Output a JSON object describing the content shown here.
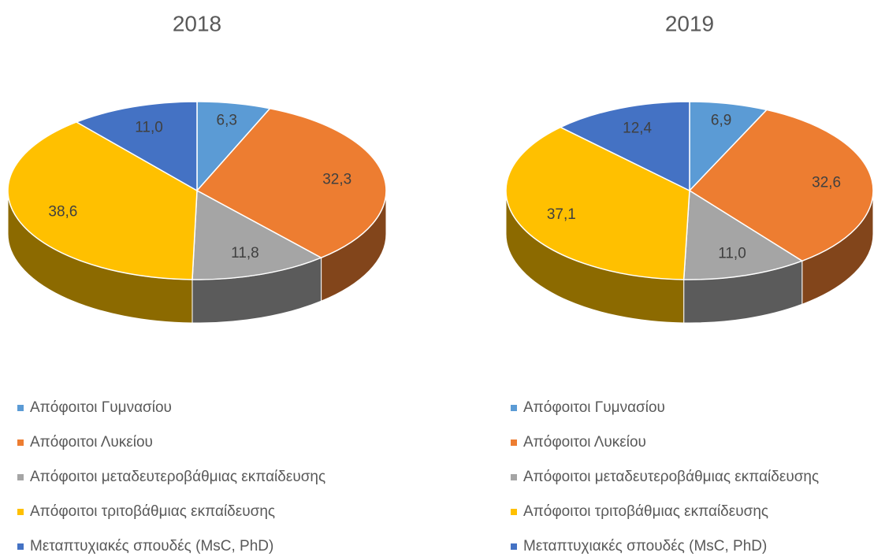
{
  "chart_data": [
    {
      "type": "pie",
      "title": "2018",
      "categories": [
        "Απόφοιτοι Γυμνασίου",
        "Απόφοιτοι Λυκείου",
        "Απόφοιτοι μεταδευτεροβάθμιας εκπαίδευσης",
        "Απόφοιτοι τριτοβάθμιας εκπαίδευσης",
        "Μεταπτυχιακές σπουδές (MsC, PhD)"
      ],
      "values": [
        6.3,
        32.3,
        11.8,
        38.6,
        11.0
      ],
      "value_labels": [
        "6,3",
        "32,3",
        "11,8",
        "38,6",
        "11,0"
      ],
      "colors": [
        "#5b9bd5",
        "#ed7d31",
        "#a5a5a5",
        "#ffc000",
        "#4472c4"
      ]
    },
    {
      "type": "pie",
      "title": "2019",
      "categories": [
        "Απόφοιτοι Γυμνασίου",
        "Απόφοιτοι Λυκείου",
        "Απόφοιτοι μεταδευτεροβάθμιας εκπαίδευσης",
        "Απόφοιτοι τριτοβάθμιας εκπαίδευσης",
        "Μεταπτυχιακές σπουδές (MsC, PhD)"
      ],
      "values": [
        6.9,
        32.6,
        11.0,
        37.1,
        12.4
      ],
      "value_labels": [
        "6,9",
        "32,6",
        "11,0",
        "37,1",
        "12,4"
      ],
      "colors": [
        "#5b9bd5",
        "#ed7d31",
        "#a5a5a5",
        "#ffc000",
        "#4472c4"
      ]
    }
  ]
}
